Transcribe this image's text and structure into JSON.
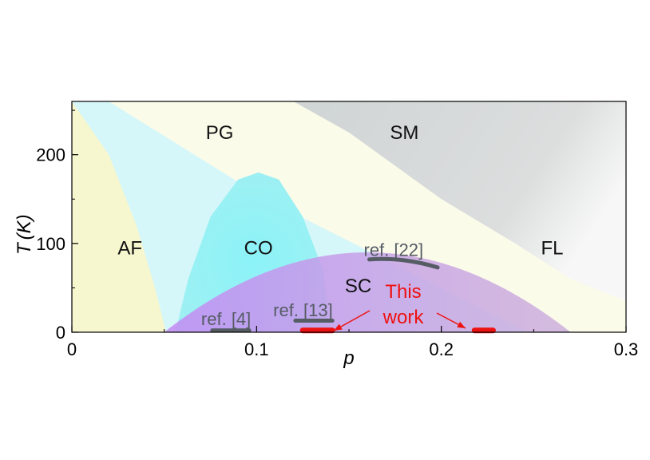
{
  "chart_data": {
    "type": "phase-diagram",
    "xlabel": "p",
    "ylabel": "T",
    "ylabel_unit": "(K)",
    "xlim": [
      0,
      0.3
    ],
    "ylim": [
      0,
      260
    ],
    "x_ticks": [
      0,
      0.1,
      0.2,
      0.3
    ],
    "x_tick_labels": [
      "0",
      "0.1",
      "0.2",
      "0.3"
    ],
    "y_ticks": [
      0,
      100,
      200
    ],
    "y_tick_labels": [
      "0",
      "100",
      "200"
    ],
    "y_minor_ticks": [
      50,
      150,
      250
    ],
    "regions": [
      {
        "label": "AF",
        "x": 0.015,
        "y": 95
      },
      {
        "label": "PG",
        "x": 0.08,
        "y": 225
      },
      {
        "label": "SM",
        "x": 0.18,
        "y": 225
      },
      {
        "label": "CO",
        "x": 0.101,
        "y": 95
      },
      {
        "label": "SC",
        "x": 0.155,
        "y": 52
      },
      {
        "label": "FL",
        "x": 0.26,
        "y": 95
      }
    ],
    "boundaries": {
      "af": [
        [
          0.0,
          260
        ],
        [
          0.02,
          200
        ],
        [
          0.035,
          120
        ],
        [
          0.045,
          50
        ],
        [
          0.051,
          0
        ]
      ],
      "pg": [
        [
          0.02,
          260
        ],
        [
          0.105,
          150
        ],
        [
          0.2,
          50
        ],
        [
          0.247,
          0
        ]
      ],
      "sm": [
        [
          0.12,
          260
        ],
        [
          0.15,
          225
        ],
        [
          0.2,
          150
        ],
        [
          0.24,
          100
        ],
        [
          0.27,
          60
        ],
        [
          0.3,
          35
        ]
      ],
      "co": [
        [
          0.056,
          0
        ],
        [
          0.063,
          60
        ],
        [
          0.075,
          130
        ],
        [
          0.09,
          172
        ],
        [
          0.101,
          180
        ],
        [
          0.112,
          172
        ],
        [
          0.125,
          130
        ],
        [
          0.136,
          70
        ],
        [
          0.14,
          0
        ]
      ],
      "sc": {
        "p_min": 0.05,
        "p_max": 0.27,
        "t_max": 90
      }
    },
    "references": [
      {
        "label": "ref. [4]",
        "x_range": [
          0.076,
          0.096
        ],
        "y": 2,
        "label_x": 0.07,
        "label_y": 17
      },
      {
        "label": "ref. [13]",
        "x_range": [
          0.121,
          0.141
        ],
        "y": 13,
        "label_x": 0.109,
        "label_y": 27
      },
      {
        "label": "ref. [22]",
        "x_range": [
          0.161,
          0.198
        ],
        "y": 82,
        "y_end": 73,
        "label_x": 0.158,
        "label_y": 95
      }
    ],
    "this_work": {
      "label_line1": "This",
      "label_line2": "work",
      "color": "#ee1111",
      "bars": [
        {
          "x_range": [
            0.125,
            0.141
          ],
          "y": 2
        },
        {
          "x_range": [
            0.218,
            0.228
          ],
          "y": 2
        }
      ]
    },
    "colors": {
      "af": "#f6f6cf",
      "pg": "#d6f7fa",
      "sm": "#d9dcdc",
      "fl": "#fbfbea",
      "co": "#8ff0f4",
      "sc": "#c494ee",
      "ref": "#555c64"
    }
  }
}
